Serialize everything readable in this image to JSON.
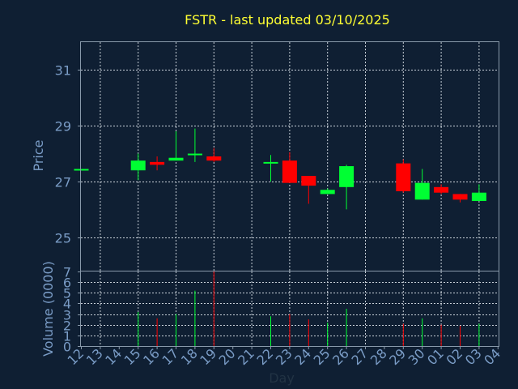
{
  "chart_data": {
    "type": "candlestick",
    "title": "FSTR - last updated 03/10/2025",
    "xlabel": "Day",
    "price_panel": {
      "ylabel": "Price",
      "ylim": [
        23.8,
        32.0
      ],
      "yticks": [
        25,
        27,
        29,
        31
      ]
    },
    "volume_panel": {
      "ylabel": "Volume (0000)",
      "ylim": [
        0,
        7
      ],
      "yticks": [
        0,
        1,
        2,
        3,
        4,
        5,
        6,
        7
      ]
    },
    "x_tick_labels": [
      "12",
      "13",
      "14",
      "15",
      "16",
      "17",
      "18",
      "19",
      "20",
      "21",
      "22",
      "23",
      "24",
      "25",
      "26",
      "27",
      "28",
      "29",
      "30",
      "01",
      "02",
      "03",
      "04"
    ],
    "colors": {
      "up": "#00ff33",
      "down": "#ff0000",
      "background": "#0f1f33",
      "title": "#ffff33",
      "axis_text": "#7a9cc6",
      "grid": "#c8d0d8"
    },
    "candles": [
      {
        "day": "12",
        "open": 27.45,
        "high": 27.45,
        "low": 27.45,
        "close": 27.45,
        "volume": 0.0
      },
      {
        "day": "15",
        "open": 27.4,
        "high": 28.0,
        "low": 27.05,
        "close": 27.75,
        "volume": 3.2
      },
      {
        "day": "16",
        "open": 27.7,
        "high": 27.9,
        "low": 27.4,
        "close": 27.6,
        "volume": 2.6
      },
      {
        "day": "17",
        "open": 27.75,
        "high": 28.8,
        "low": 27.75,
        "close": 27.85,
        "volume": 3.0
      },
      {
        "day": "18",
        "open": 28.0,
        "high": 28.9,
        "low": 27.7,
        "close": 28.0,
        "volume": 5.2
      },
      {
        "day": "19",
        "open": 27.9,
        "high": 28.2,
        "low": 27.7,
        "close": 27.75,
        "volume": 7.0
      },
      {
        "day": "22",
        "open": 27.7,
        "high": 27.95,
        "low": 27.0,
        "close": 27.7,
        "volume": 2.8
      },
      {
        "day": "23",
        "open": 27.75,
        "high": 28.05,
        "low": 26.95,
        "close": 26.95,
        "volume": 3.0
      },
      {
        "day": "24",
        "open": 27.2,
        "high": 27.2,
        "low": 26.2,
        "close": 26.85,
        "volume": 2.5
      },
      {
        "day": "25",
        "open": 26.55,
        "high": 26.75,
        "low": 26.55,
        "close": 26.7,
        "volume": 2.2
      },
      {
        "day": "26",
        "open": 26.8,
        "high": 27.6,
        "low": 26.0,
        "close": 27.55,
        "volume": 3.5
      },
      {
        "day": "29",
        "open": 27.65,
        "high": 27.8,
        "low": 26.6,
        "close": 26.65,
        "volume": 2.1
      },
      {
        "day": "30",
        "open": 26.35,
        "high": 27.45,
        "low": 26.35,
        "close": 26.95,
        "volume": 2.6
      },
      {
        "day": "01",
        "open": 26.8,
        "high": 26.9,
        "low": 26.55,
        "close": 26.6,
        "volume": 2.0
      },
      {
        "day": "02",
        "open": 26.55,
        "high": 26.55,
        "low": 26.25,
        "close": 26.35,
        "volume": 1.9
      },
      {
        "day": "03",
        "open": 26.3,
        "high": 26.9,
        "low": 26.3,
        "close": 26.6,
        "volume": 2.1
      }
    ]
  }
}
